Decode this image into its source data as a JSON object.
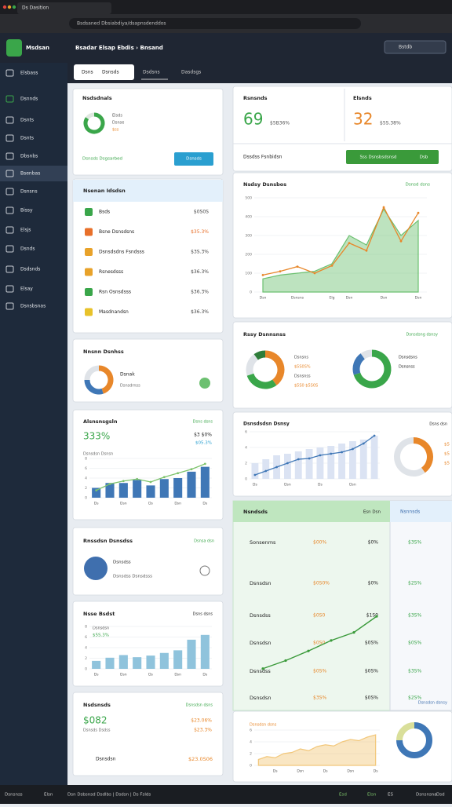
{
  "browser": {
    "tab": "Ds Dasition",
    "url": "Bsdsaned Dbsiabdiya/dsapnsdenddos"
  },
  "header": {
    "app": "Msdsan",
    "breadcrumb": "Bsadar Elsap Ebdis › Bnsand",
    "account": "Bstdb"
  },
  "tabs": [
    "Dsns",
    "Dsnsds",
    "Dsdsns",
    "Dasdsgs"
  ],
  "sidebar": [
    "Elsbass",
    "Dsnnds",
    "Dsnts",
    "Dsnts",
    "Dbsnbs",
    "Bsenbas",
    "Dsnsns",
    "Bissy",
    "Elsjs",
    "Dsnds",
    "Dsdsnds",
    "Elsay",
    "Dsnsbsnas"
  ],
  "status": {
    "title": "Nsdsdnals",
    "lines": [
      "Elsds",
      "Dsnse",
      "$ss"
    ],
    "link": "Dsnsds Dsgsarbed",
    "button": "Dsnsds",
    "donut": {
      "values": [
        85,
        15
      ],
      "colors": [
        "#3aa64a",
        "#dfe8e0"
      ]
    }
  },
  "list": {
    "title": "Nsenan Idsdsn",
    "rows": [
      {
        "label": "Bsds",
        "value": "$0S0S",
        "color": "#3aa64a"
      },
      {
        "label": "Bsne Dsnsdsns",
        "value": "$35.3%",
        "color": "#e8702a"
      },
      {
        "label": "Dsnsdsdns Fsndsss",
        "value": "$3S.3%",
        "color": "#e8a22a"
      },
      {
        "label": "Rsnesdsss",
        "value": "$36.3%",
        "color": "#e8a22a"
      },
      {
        "label": "Rsn Osnsdsss",
        "value": "$36.3%",
        "color": "#3aa64a"
      },
      {
        "label": "Masdnandsn",
        "value": "$36.3%",
        "color": "#e8c22a"
      }
    ]
  },
  "mix": {
    "title": "Nnsnn Dsnhss",
    "text": "Dsnak",
    "sub": "Dsnsdrnss",
    "donut": {
      "values": [
        45,
        30,
        25
      ],
      "colors": [
        "#e8872a",
        "#3f77b6",
        "#dfe3e8"
      ]
    }
  },
  "growth": {
    "title": "Alsnsnsgsln",
    "tag": "Dsns dsns",
    "big": "333%",
    "side": "$3 $0%",
    "sub": "$05.3%",
    "note": "Dsnsdsn Dsnsn",
    "categories": [
      "Ds",
      null,
      "Dsn",
      null,
      "Ds",
      null,
      "Dsn",
      null,
      "Ds"
    ],
    "ylim": [
      0,
      8
    ],
    "yticks": [
      0,
      2,
      4,
      6,
      8
    ],
    "series": [
      {
        "type": "bar",
        "color": "#3f77b6",
        "values": [
          2,
          3,
          3,
          3.6,
          2.5,
          3.8,
          4,
          5.3,
          6.3
        ]
      },
      {
        "type": "line",
        "color": "#7dc36b",
        "values": [
          1.5,
          2.8,
          3.4,
          3.8,
          3.2,
          4.2,
          5,
          5.8,
          6.9
        ]
      }
    ]
  },
  "profile": {
    "title": "Rnssdsn Dsnsdss",
    "tag": "Dsnsa dsn",
    "lines": [
      "Dsnsdss",
      "Dsnsdss Dsnsdsss"
    ]
  },
  "budget": {
    "title": "Nsse Bsdst",
    "tag": "Dsns dsns",
    "label": "Dsnsdsn",
    "value": "$5S.3%",
    "categories": [
      "Ds",
      null,
      "Dsn",
      null,
      "Ds",
      null,
      "Dsn",
      null,
      "Ds"
    ],
    "ylim": [
      0,
      8
    ],
    "yticks": [
      0,
      2,
      4,
      6,
      8
    ],
    "series": [
      {
        "type": "bar",
        "color": "#8fc3dc",
        "values": [
          1.5,
          2.1,
          2.6,
          2.2,
          2.5,
          3,
          3.5,
          5.5,
          6.4
        ]
      }
    ]
  },
  "summary": {
    "title": "Nsdsnsds",
    "tag": "Dsnsdsn dsns",
    "big": "$082",
    "sub": "Dsnsds Dsdss",
    "v1": "$23.06%",
    "v2": "$23.3%",
    "footlabel": "Dsnsdsn",
    "footvalue": "$23.0S06"
  },
  "stats": {
    "items": [
      {
        "title": "Rsnsnds",
        "value": 69,
        "change": "$5B36%",
        "color": "#3aa64a"
      },
      {
        "title": "Elsnds",
        "value": 32,
        "change": "$5S.38%",
        "color": "#e8872a"
      }
    ],
    "label": "Dssdss Fsnbidsn",
    "button": "Sss Dsnsbsdsnsd",
    "button2": "Dsb"
  },
  "trend": {
    "title": "Nsdsy Dsnsbos",
    "tag": "Dsnsd dsns",
    "categories": [
      "Dsn",
      null,
      "Dsnsns",
      null,
      "Elg",
      "Dsn",
      null,
      "Dsn",
      null,
      "Dsn"
    ],
    "ylim": [
      0,
      500
    ],
    "yticks": [
      0,
      100,
      200,
      300,
      400,
      500
    ],
    "series": [
      {
        "type": "area",
        "color": "#6cc070",
        "values": [
          70,
          90,
          100,
          110,
          150,
          300,
          250,
          440,
          300,
          380
        ]
      },
      {
        "type": "line",
        "color": "#e8872a",
        "values": [
          90,
          110,
          135,
          100,
          140,
          260,
          220,
          450,
          270,
          420
        ]
      }
    ]
  },
  "rings": {
    "title": "Rssy Dsnnsnss",
    "tag": "Dsnsdsng dsnsy",
    "left": {
      "values": [
        40,
        30,
        20,
        10
      ],
      "colors": [
        "#e8872a",
        "#3aa64a",
        "#dfe3e8",
        "#2e7d3a"
      ]
    },
    "leftlines": [
      "Dsnsns",
      "$5S0S%",
      "Dsnsnss",
      "$5S0 $5S0S"
    ],
    "right": {
      "values": [
        70,
        20,
        10
      ],
      "colors": [
        "#3aa64a",
        "#3f77b6",
        "#dfe3e8"
      ]
    },
    "rightlines": [
      "Dsnsdsns",
      "Dsnsnss"
    ]
  },
  "perf": {
    "title": "Dsnsdsdsn Dsnsy",
    "tag": "Dsns dsn",
    "categories": [
      "Ds",
      null,
      null,
      "Dsn",
      null,
      null,
      "Ds",
      null,
      null,
      "Dsn",
      null,
      null
    ],
    "ylim": [
      0,
      6
    ],
    "yticks": [
      0,
      2,
      4,
      6
    ],
    "series": [
      {
        "type": "bar",
        "color": "#dbe3f3",
        "values": [
          2,
          2.5,
          3,
          3.2,
          3.5,
          3.8,
          4,
          4.2,
          4.5,
          4.8,
          5,
          5.5
        ]
      },
      {
        "type": "line",
        "color": "#3f77b6",
        "values": [
          0.5,
          1,
          1.5,
          2,
          2.5,
          2.6,
          3,
          3.2,
          3.4,
          3.8,
          4.5,
          5.5
        ]
      }
    ],
    "donut": {
      "values": [
        40,
        60
      ],
      "colors": [
        "#e8872a",
        "#dfe3e8"
      ]
    },
    "sidelabels": [
      "$5",
      "$5",
      "$5"
    ]
  },
  "table": {
    "title": "Nsndsds",
    "tag": "Esn Dsn",
    "sidetitle": "Nsnnsds",
    "rows": [
      [
        "Sonsenms",
        "$00%",
        "$0%"
      ],
      [
        "Dsnsdsn",
        "$0S0%",
        "$0%"
      ],
      [
        "Dsnsdss",
        "$0S0",
        "$1S0"
      ],
      [
        "Dsnsdsn",
        "$0S0",
        "$0S%"
      ],
      [
        "Dsnsdss",
        "$0S%",
        "$0S%"
      ],
      [
        "Dsnsdsn",
        "$3S%",
        "$0S%"
      ]
    ],
    "side": [
      "$3S%",
      "$2S%",
      "$3S%",
      "$0S%",
      "$3S%",
      "$2S%"
    ],
    "line": {
      "ylim": [
        0,
        8
      ],
      "color": "#3a9a3a",
      "values": [
        1,
        2,
        3.2,
        4.5,
        5.5,
        7.5
      ]
    }
  },
  "area": {
    "tag": "Dsnsdsn dsns",
    "categories": [
      null,
      null,
      "Ds",
      null,
      null,
      "Dsn",
      null,
      null,
      "Ds",
      null,
      null,
      "Dsn",
      null,
      null,
      "Ds"
    ],
    "ylim": [
      0,
      6
    ],
    "yticks": [
      0,
      2,
      4,
      6
    ],
    "series": [
      {
        "type": "area",
        "color": "#f2c77a",
        "values": [
          1,
          1.5,
          1.3,
          2,
          2.2,
          2.8,
          2.5,
          3.2,
          3.5,
          3.3,
          4,
          4.4,
          4.2,
          4.8,
          5.2
        ]
      }
    ],
    "donut": {
      "values": [
        75,
        25
      ],
      "colors": [
        "#3f77b6",
        "#d9df9a"
      ]
    },
    "donutlabel": "Dsnsdsn dsnsy"
  },
  "footer": {
    "left": [
      "Dsnsnss",
      "Elsn",
      "Dsn Dsbsnsd Dsdlbs | Dsdsn | Ds Fslds"
    ],
    "right": [
      "Esd",
      "Elsn",
      "ES",
      "Dsnsnsna",
      "Dsd"
    ]
  }
}
